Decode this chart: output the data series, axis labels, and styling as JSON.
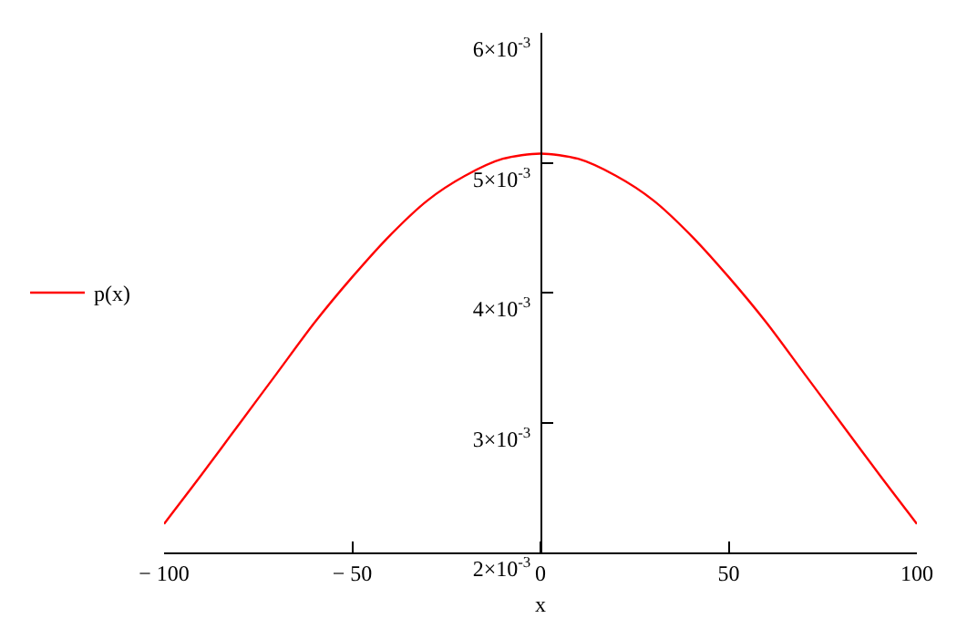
{
  "chart_data": {
    "type": "line",
    "xlabel": "x",
    "legend": "left",
    "marker": "none",
    "line_style": "solid",
    "x": [
      -100,
      -90,
      -80,
      -70,
      -60,
      -50,
      -40,
      -30,
      -20,
      -10,
      0,
      10,
      20,
      30,
      40,
      50,
      60,
      70,
      80,
      90,
      100
    ],
    "series": [
      {
        "name": "p(x)",
        "color": "#ff0000",
        "values": [
          0.00222,
          0.0026,
          0.00299,
          0.00338,
          0.00377,
          0.00412,
          0.00444,
          0.00471,
          0.0049,
          0.00503,
          0.00507,
          0.00503,
          0.0049,
          0.00471,
          0.00444,
          0.00412,
          0.00377,
          0.00338,
          0.00299,
          0.0026,
          0.00222
        ]
      }
    ],
    "xlim": [
      -100,
      100
    ],
    "xticks": [
      -100,
      -50,
      0,
      50,
      100
    ],
    "ylim": [
      0.002,
      0.006
    ],
    "yticks": [
      {
        "value": 0.002,
        "label": "2×10$^{-3}$"
      },
      {
        "value": 0.003,
        "label": "3×10$^{-3}$"
      },
      {
        "value": 0.004,
        "label": "4×10$^{-3}$"
      },
      {
        "value": 0.005,
        "label": "5×10$^{-3}$"
      },
      {
        "value": 0.006,
        "label": "6×10$^{-3}$"
      }
    ]
  }
}
